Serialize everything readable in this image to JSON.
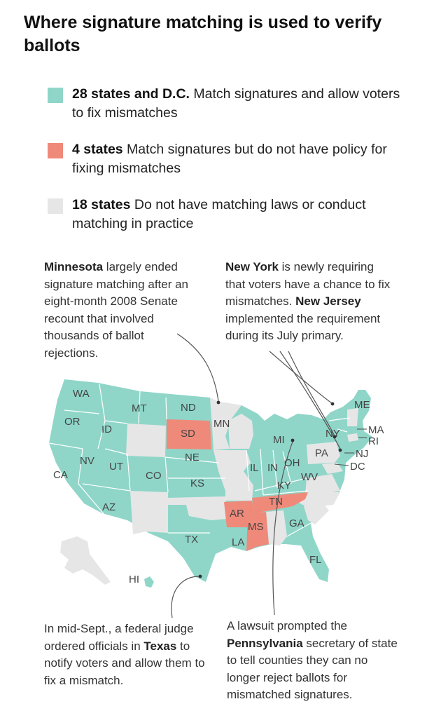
{
  "title": "Where signature matching is used to verify ballots",
  "colors": {
    "match_and_fix": "#8fd6c9",
    "match_no_fix": "#ef8a7a",
    "no_matching": "#e6e6e6",
    "leader_line": "#555555"
  },
  "legend": [
    {
      "bold": "28 states and D.C.",
      "text": " Match signatures and allow voters to fix mismatches",
      "category": "match_and_fix"
    },
    {
      "bold": "4 states",
      "text": " Match signatures but do not have policy for fixing mismatches",
      "category": "match_no_fix"
    },
    {
      "bold": "18 states",
      "text": " Do not have matching laws or conduct matching in practice",
      "category": "no_matching"
    }
  ],
  "annotations": {
    "minnesota": {
      "parts": [
        {
          "b": "Minnesota"
        },
        {
          "t": " largely ended signature matching after an eight-month 2008 Senate recount that involved thousands of ballot rejections."
        }
      ]
    },
    "new_york": {
      "parts": [
        {
          "b": "New York"
        },
        {
          "t": " is newly requiring that voters have a chance to fix mismatches. "
        },
        {
          "b": "New Jersey"
        },
        {
          "t": " implemented the requirement during its July primary."
        }
      ]
    },
    "texas": {
      "parts": [
        {
          "t": "In mid-Sept., a federal judge ordered officials in "
        },
        {
          "b": "Texas"
        },
        {
          "t": " to notify voters and allow them to fix a mismatch."
        }
      ]
    },
    "pennsylvania": {
      "parts": [
        {
          "t": "A lawsuit prompted the "
        },
        {
          "b": "Pennsylvania"
        },
        {
          "t": " secretary of state to tell counties they can no longer reject ballots for mismatched signatures."
        }
      ]
    }
  },
  "states": {
    "WA": "WA",
    "OR": "OR",
    "CA": "CA",
    "ID": "ID",
    "NV": "NV",
    "MT": "MT",
    "UT": "UT",
    "AZ": "AZ",
    "CO": "CO",
    "ND": "ND",
    "SD": "SD",
    "NE": "NE",
    "KS": "KS",
    "TX": "TX",
    "MN": "MN",
    "AR": "AR",
    "LA": "LA",
    "MS": "MS",
    "TN": "TN",
    "IL": "IL",
    "IN": "IN",
    "OH": "OH",
    "KY": "KY",
    "WV": "WV",
    "MI": "MI",
    "GA": "GA",
    "FL": "FL",
    "PA": "PA",
    "NY": "NY",
    "ME": "ME",
    "MA": "MA",
    "RI": "RI",
    "NJ": "NJ",
    "DC": "DC",
    "HI": "HI"
  }
}
